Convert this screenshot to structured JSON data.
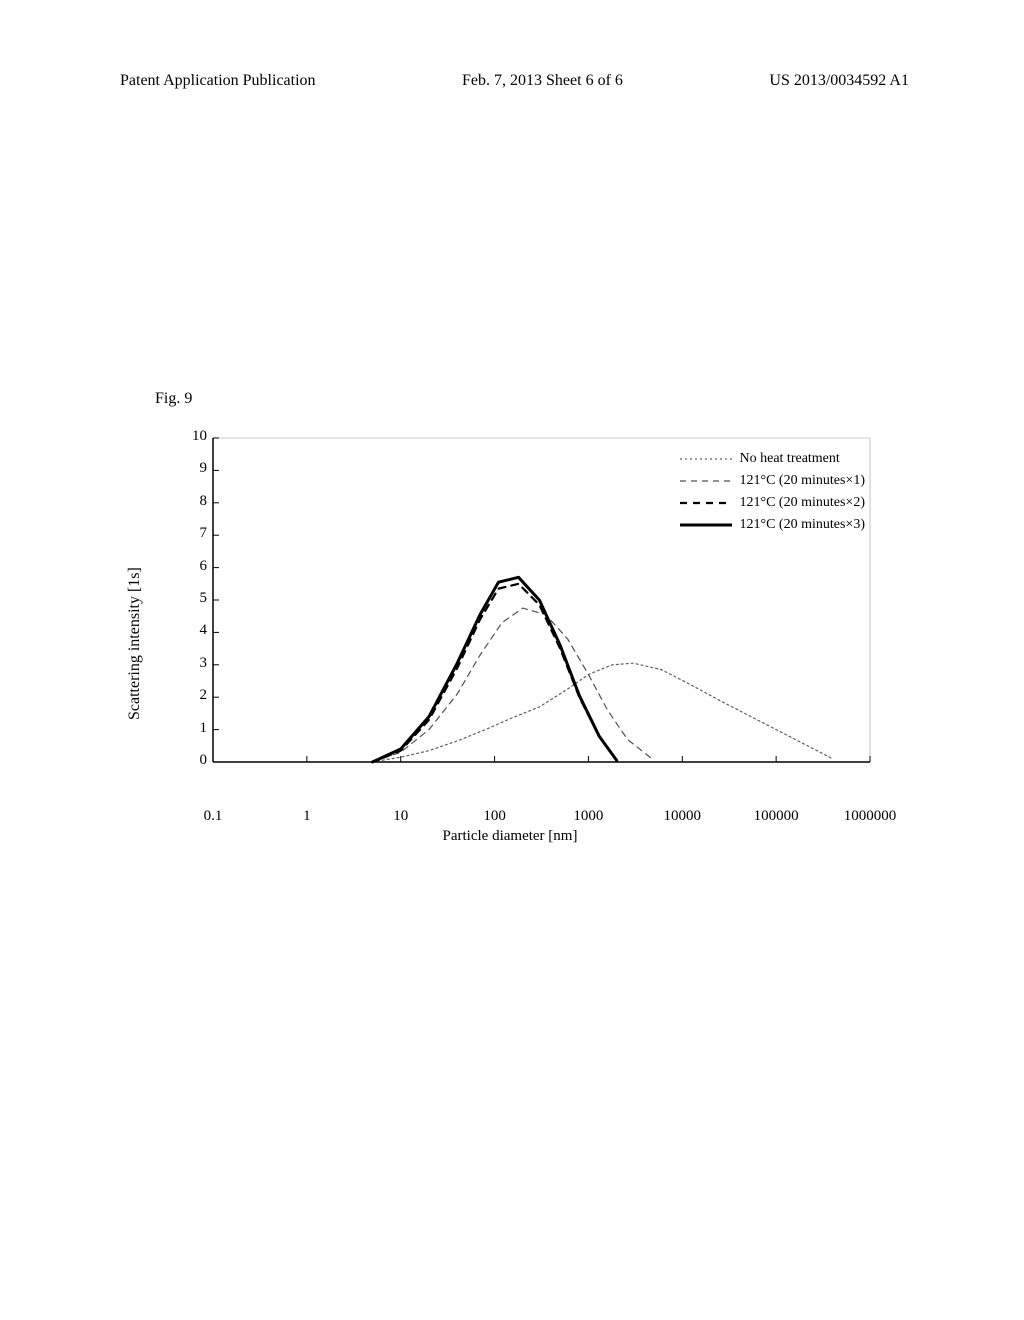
{
  "header": {
    "left": "Patent Application Publication",
    "center": "Feb. 7, 2013  Sheet 6 of 6",
    "right": "US 2013/0034592 A1"
  },
  "figure_label": "Fig. 9",
  "chart": {
    "type": "line",
    "xlabel": "Particle diameter [nm]",
    "ylabel": "Scattering intensity [1s]",
    "xscale": "log",
    "xlim": [
      0.1,
      1000000
    ],
    "ylim": [
      0,
      10
    ],
    "yticks": [
      0,
      1,
      2,
      3,
      4,
      5,
      6,
      7,
      8,
      9,
      10
    ],
    "xticks": [
      0.1,
      1,
      10,
      100,
      1000,
      10000,
      100000,
      1000000
    ],
    "xtick_labels": [
      "0.1",
      "1",
      "10",
      "100",
      "1000",
      "10000",
      "100000",
      "1000000"
    ],
    "background_color": "#ffffff",
    "axis_color": "#000000",
    "axis_width": 1.5,
    "legend": {
      "position": "upper-right",
      "items": [
        {
          "label": "No heat treatment",
          "style": "chain",
          "color": "#606060",
          "width": 1.2
        },
        {
          "label": "121°C (20 minutes×1)",
          "style": "dash-fine",
          "color": "#505050",
          "width": 1.2
        },
        {
          "label": "121°C (20 minutes×2)",
          "style": "dash-thick",
          "color": "#000000",
          "width": 2.2
        },
        {
          "label": "121°C (20 minutes×3)",
          "style": "solid",
          "color": "#000000",
          "width": 3.0
        }
      ]
    },
    "series": [
      {
        "name": "no_heat",
        "style": "chain",
        "color": "#606060",
        "width": 1.2,
        "x": [
          5,
          10,
          20,
          40,
          80,
          150,
          300,
          600,
          1000,
          1800,
          3000,
          6000,
          12000,
          25000,
          50000,
          100000,
          200000,
          400000
        ],
        "y": [
          0,
          0.15,
          0.35,
          0.65,
          1.0,
          1.35,
          1.7,
          2.25,
          2.7,
          3.0,
          3.05,
          2.85,
          2.4,
          1.9,
          1.45,
          1.0,
          0.55,
          0.1
        ]
      },
      {
        "name": "heat_x1",
        "style": "dash-fine",
        "color": "#505050",
        "width": 1.2,
        "x": [
          5,
          10,
          20,
          40,
          70,
          120,
          200,
          350,
          600,
          1000,
          1600,
          2600,
          5000
        ],
        "y": [
          0,
          0.3,
          1.0,
          2.1,
          3.3,
          4.3,
          4.75,
          4.55,
          3.8,
          2.7,
          1.6,
          0.7,
          0.05
        ]
      },
      {
        "name": "heat_x2",
        "style": "dash-thick",
        "color": "#000000",
        "width": 2.2,
        "x": [
          5,
          10,
          20,
          40,
          70,
          110,
          180,
          300,
          500,
          800,
          1300,
          2000
        ],
        "y": [
          0,
          0.35,
          1.3,
          2.9,
          4.4,
          5.35,
          5.5,
          4.85,
          3.5,
          2.0,
          0.8,
          0.05
        ]
      },
      {
        "name": "heat_x3",
        "style": "solid",
        "color": "#000000",
        "width": 3.0,
        "x": [
          5,
          10,
          20,
          40,
          70,
          110,
          180,
          300,
          500,
          800,
          1300,
          2000
        ],
        "y": [
          0,
          0.4,
          1.4,
          3.05,
          4.55,
          5.55,
          5.7,
          5.0,
          3.6,
          2.05,
          0.8,
          0.05
        ]
      }
    ]
  }
}
